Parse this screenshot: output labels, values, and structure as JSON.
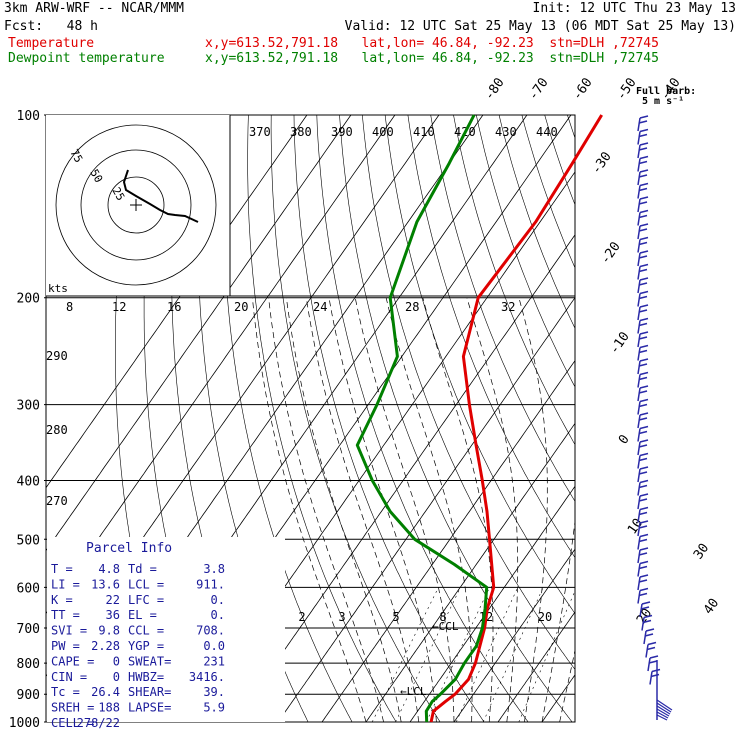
{
  "header": {
    "left_line1": "3km ARW-WRF -- NCAR/MMM",
    "left_line2": "Fcst:   48 h",
    "init": "Init: 12 UTC Thu 23 May 13",
    "valid": "Valid: 12 UTC Sat 25 May 13 (06 MDT Sat 25 May 13)",
    "temp_label": "Temperature",
    "dew_label": "Dewpoint temperature",
    "temp_loc": "x,y=613.52,791.18   lat,lon= 46.84, -92.23  stn=DLH ,72745",
    "dew_loc": "x,y=613.52,791.18   lat,lon= 46.84, -92.23  stn=DLH ,72745",
    "wind_key": "Full barb:",
    "wind_key_units": "5 m s⁻¹"
  },
  "colors": {
    "temperature": "#e00000",
    "dewpoint": "#008000",
    "wind": "#2a2aa8",
    "hodo": "#000000"
  },
  "parcel": {
    "title": "Parcel Info",
    "rows": [
      [
        "T  =",
        "4.8",
        "Td =",
        "3.8"
      ],
      [
        "LI =",
        "13.6",
        "LCL =",
        "911."
      ],
      [
        "K  =",
        "22",
        "LFC =",
        "0."
      ],
      [
        "TT =",
        "36",
        "EL  =",
        "0."
      ],
      [
        "SVI =",
        "9.8",
        "CCL =",
        "708."
      ],
      [
        "PW =",
        "2.28",
        "YGP =",
        "0.0"
      ],
      [
        "CAPE =",
        "0",
        "SWEAT=",
        "231"
      ],
      [
        "CIN =",
        "0",
        "HWBZ=",
        "3416."
      ],
      [
        "Tc =",
        "26.4",
        "SHEAR=",
        "39."
      ],
      [
        "SREH =",
        "188",
        "LAPSE=",
        "5.9"
      ],
      [
        "CELL =",
        "278/22",
        "",
        ""
      ]
    ]
  },
  "annotations": {
    "ccl": "CCL",
    "lcl": "LCL",
    "kts": "kts"
  },
  "chart_data": {
    "type": "skew-t",
    "xlabel": "",
    "ylabel": "",
    "pressure_levels": [
      100,
      200,
      300,
      400,
      500,
      600,
      700,
      800,
      900,
      1000
    ],
    "isotherm_labels": [
      "-80",
      "-70",
      "-60",
      "-50",
      "-40",
      "-30",
      "-20",
      "-10",
      "0",
      "10",
      "20",
      "30",
      "40"
    ],
    "theta_e_labels": [
      "370",
      "380",
      "390",
      "400",
      "410",
      "420",
      "430",
      "440"
    ],
    "mixing_ratio_labels": [
      "2",
      "3",
      "5",
      "8",
      "12",
      "20"
    ],
    "dry_adiabat_labels": [
      "290",
      "280",
      "270"
    ],
    "hodo_speed_labels": [
      "8",
      "12",
      "16",
      "20",
      "24",
      "28",
      "32"
    ],
    "hodo_ring_labels": [
      "75",
      "50",
      "25"
    ],
    "series": [
      {
        "name": "Temperature",
        "pressure": [
          1000,
          960,
          925,
          900,
          850,
          800,
          750,
          700,
          650,
          600,
          550,
          500,
          450,
          400,
          350,
          300,
          250,
          200,
          150,
          120,
          100
        ],
        "temp": [
          4.8,
          3.6,
          4.8,
          5.8,
          6.5,
          5.5,
          3.8,
          2.0,
          -0.5,
          -2.4,
          -6.5,
          -11,
          -16,
          -22,
          -29,
          -37,
          -46,
          -52,
          -51,
          -52,
          -53
        ]
      },
      {
        "name": "Dewpoint temperature",
        "pressure": [
          1000,
          960,
          925,
          900,
          850,
          800,
          750,
          700,
          650,
          600,
          550,
          500,
          450,
          400,
          350,
          300,
          250,
          200,
          150,
          120,
          100
        ],
        "temp": [
          3.8,
          2.0,
          1.8,
          2.5,
          3.5,
          3.0,
          3.0,
          1.5,
          -1.0,
          -4.0,
          -15,
          -28,
          -38,
          -47,
          -56,
          -58,
          -61,
          -72,
          -78,
          -80,
          -82
        ]
      }
    ]
  }
}
